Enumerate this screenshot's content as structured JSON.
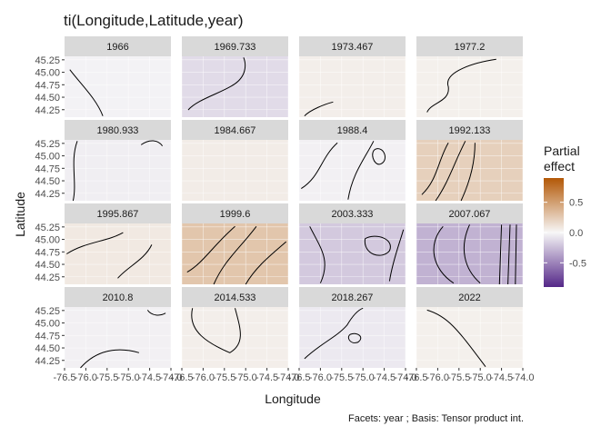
{
  "chart_data": {
    "type": "heatmap",
    "title": "ti(Longitude,Latitude,year)",
    "xlabel": "Longitude",
    "ylabel": "Latitude",
    "caption": "Facets: year ; Basis: Tensor product int.",
    "xlim": [
      -76.5,
      -74.0
    ],
    "ylim": [
      44.1,
      45.32
    ],
    "x_tick_labels": [
      "-76.5",
      "-76.0",
      "-75.5",
      "-75.0",
      "-74.5",
      "-74.0"
    ],
    "y_tick_labels": [
      "44.25",
      "44.50",
      "44.75",
      "45.00",
      "45.25"
    ],
    "facet_labels": [
      "1966",
      "1969.733",
      "1973.467",
      "1977.2",
      "1980.933",
      "1984.667",
      "1988.4",
      "1992.133",
      "1995.867",
      "1999.6",
      "2003.333",
      "2007.067",
      "2010.8",
      "2014.533",
      "2018.267",
      "2022"
    ],
    "facet_mean_effect": [
      -0.02,
      -0.12,
      0.05,
      0.04,
      -0.04,
      0.06,
      -0.03,
      0.22,
      0.08,
      0.28,
      -0.2,
      -0.3,
      -0.03,
      0.05,
      -0.06,
      0.04
    ],
    "legend": {
      "title_line1": "Partial",
      "title_line2": "effect",
      "tick_labels": [
        "0.5",
        "0.0",
        "-0.5"
      ],
      "range": [
        -0.9,
        0.9
      ],
      "colors": {
        "high": "#b35806",
        "mid": "#f7f7f7",
        "low": "#542788"
      }
    },
    "colors": {
      "strip": "#d9d9d9",
      "panel": "#ebebeb",
      "contour": "#000000"
    }
  }
}
